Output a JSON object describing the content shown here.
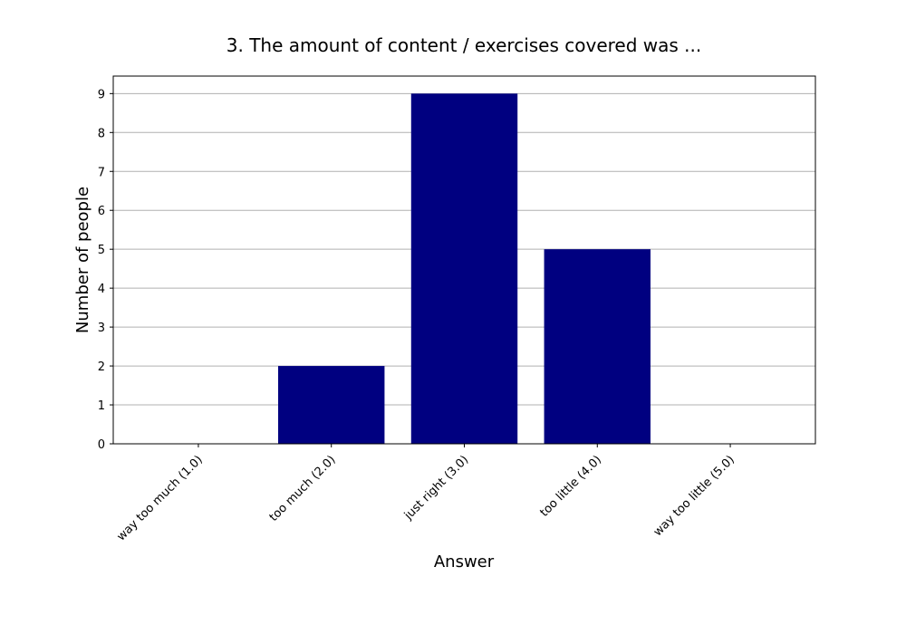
{
  "chart_data": {
    "type": "bar",
    "title": "3. The amount of content / exercises covered was ...",
    "xlabel": "Answer",
    "ylabel": "Number of people",
    "categories": [
      "way too much (1.0)",
      "too much (2.0)",
      "just right (3.0)",
      "too little (4.0)",
      "way too little (5.0)"
    ],
    "values": [
      0,
      2,
      9,
      5,
      0
    ],
    "ylim": [
      0,
      9.45
    ],
    "yticks": [
      0,
      1,
      2,
      3,
      4,
      5,
      6,
      7,
      8,
      9
    ],
    "grid": "y",
    "bar_color": "#000080",
    "grid_color": "#b0b0b0"
  }
}
